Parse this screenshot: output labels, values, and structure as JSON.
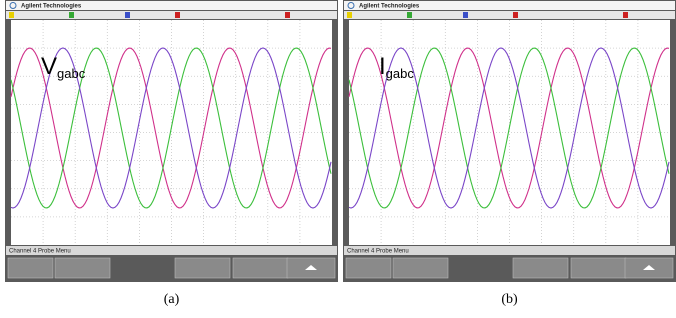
{
  "figure": {
    "panels": [
      {
        "brand": "Agilent Technologies",
        "symbol": "V",
        "subscript": "gabc",
        "footer": "Channel 4 Probe Menu",
        "caption": "(a)"
      },
      {
        "brand": "Agilent Technologies",
        "symbol": "I",
        "subscript": "gabc",
        "footer": "Channel 4 Probe Menu",
        "caption": "(b)"
      }
    ]
  }
}
